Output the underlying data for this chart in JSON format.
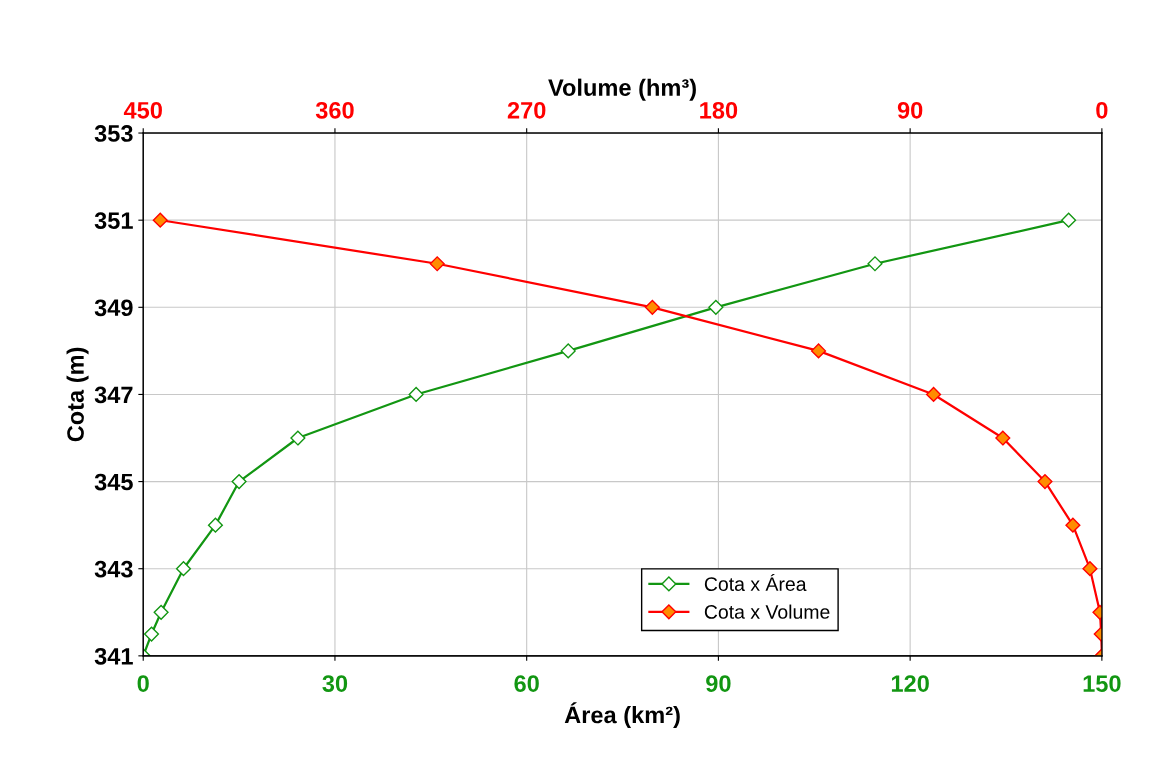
{
  "chart_data": {
    "type": "line",
    "xlabel": "Área (km²)",
    "x2label": "Volume (hm³)",
    "ylabel": "Cota (m)",
    "xlim": [
      0,
      150
    ],
    "xticks": [
      0,
      30,
      60,
      90,
      120,
      150
    ],
    "x2lim": [
      450,
      0
    ],
    "x2ticks": [
      450,
      360,
      270,
      180,
      90,
      0
    ],
    "ylim": [
      341,
      353
    ],
    "yticks": [
      341,
      343,
      345,
      347,
      349,
      351,
      353
    ],
    "grid": true,
    "legend": "bottom right",
    "marker": "diamond",
    "line_style": "solid",
    "series": [
      {
        "name": "Cota x Área",
        "color": "#129612",
        "x": [
          0,
          1.3,
          2.8,
          6.3,
          11.3,
          15.0,
          24.2,
          42.7,
          66.5,
          89.6,
          114.5,
          144.8
        ],
        "values": [
          341,
          341.5,
          342,
          343,
          344,
          345,
          346,
          347,
          348,
          349,
          350,
          351
        ]
      },
      {
        "name": "Cota x Volume",
        "color": "#ff0000",
        "axis": "x2",
        "x": [
          0,
          0.3,
          0.9,
          5.6,
          13.6,
          26.7,
          46.5,
          79,
          133,
          211,
          312,
          442
        ],
        "values": [
          341,
          341.5,
          342,
          343,
          344,
          345,
          346,
          347,
          348,
          349,
          350,
          351
        ]
      }
    ]
  }
}
